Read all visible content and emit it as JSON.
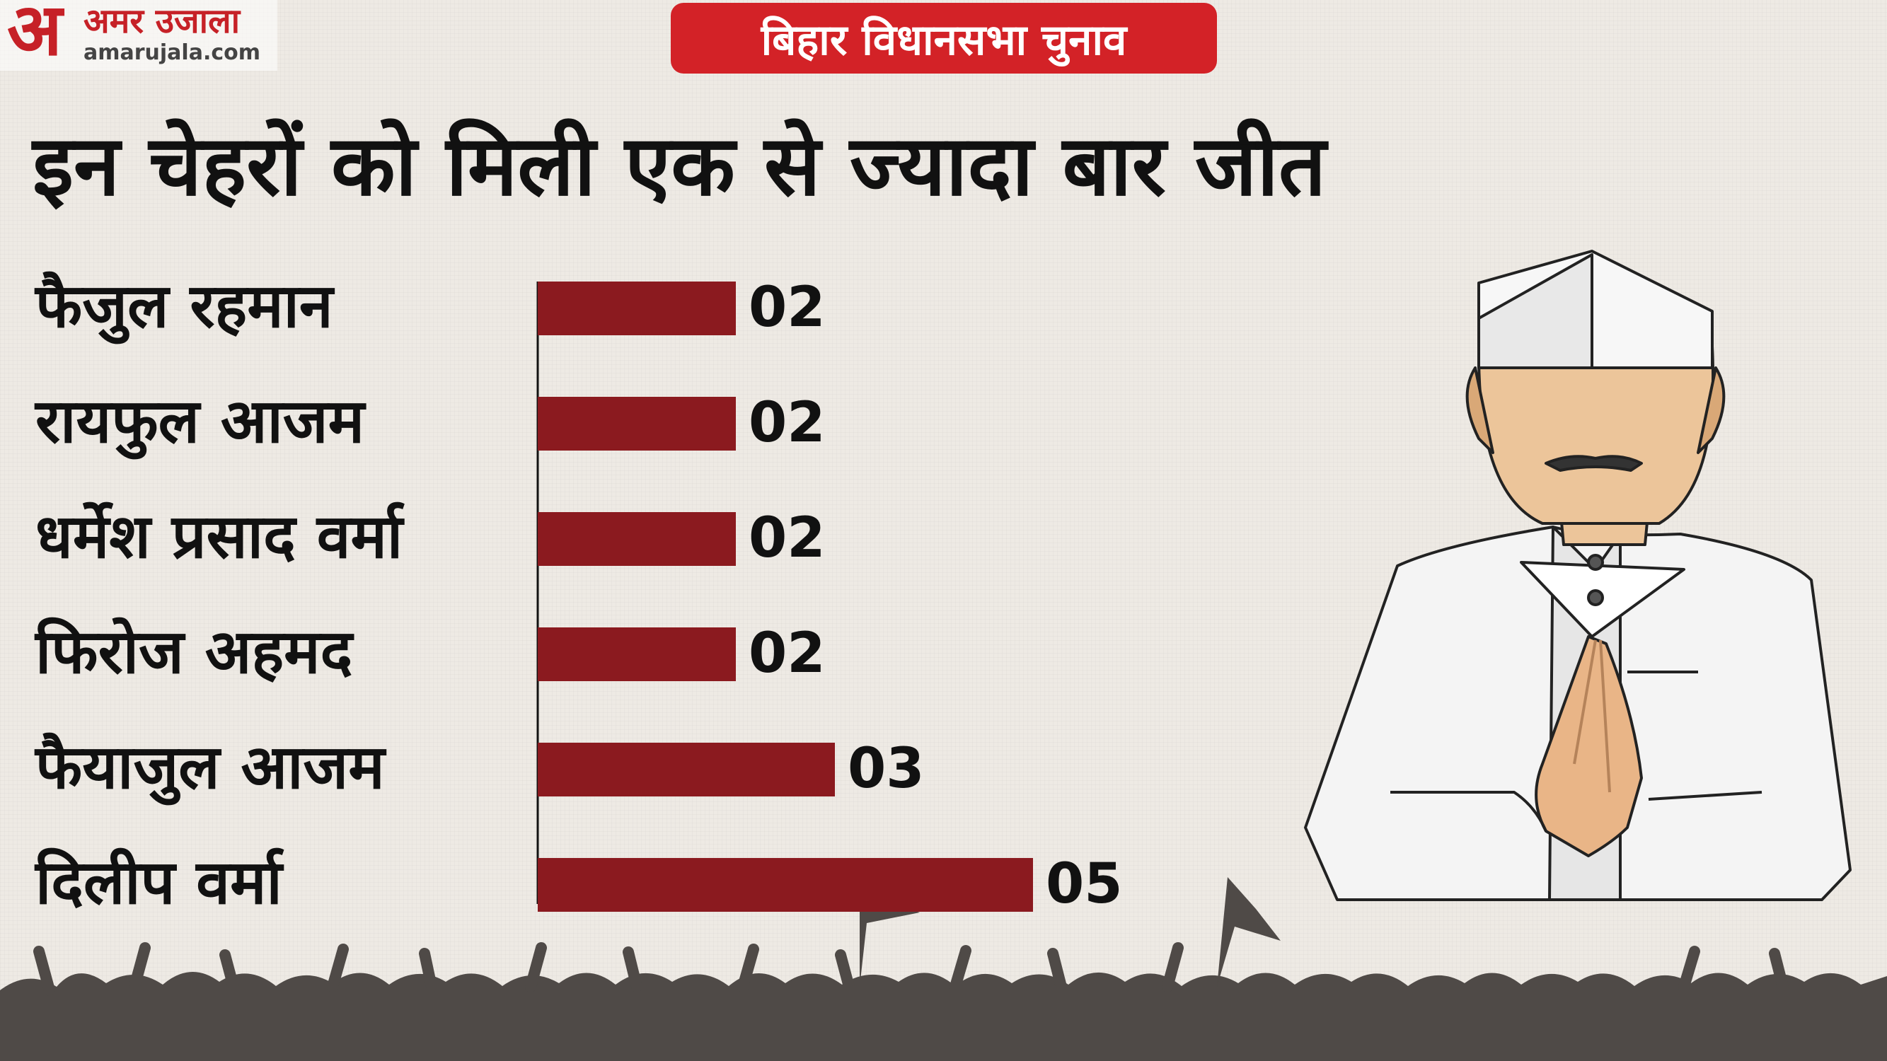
{
  "brand": {
    "mark": "अ",
    "name": "अमर उजाला",
    "url": "amarujala.com"
  },
  "tag": "बिहार विधानसभा चुनाव",
  "headline": "इन चेहरों को मिली एक से ज्यादा बार जीत",
  "colors": {
    "bar": "#8b1a1f",
    "tag": "#d32227",
    "brand": "#c62127"
  },
  "chart_data": {
    "type": "bar",
    "orientation": "horizontal",
    "categories": [
      "फैजुल रहमान",
      "रायफुल आजम",
      "धर्मेश प्रसाद वर्मा",
      "फिरोज अहमद",
      "फैयाजुल आजम",
      "दिलीप वर्मा"
    ],
    "values": [
      2,
      2,
      2,
      2,
      3,
      5
    ],
    "value_labels": [
      "02",
      "02",
      "02",
      "02",
      "03",
      "05"
    ],
    "xlim": [
      0,
      5
    ],
    "grid": false
  }
}
